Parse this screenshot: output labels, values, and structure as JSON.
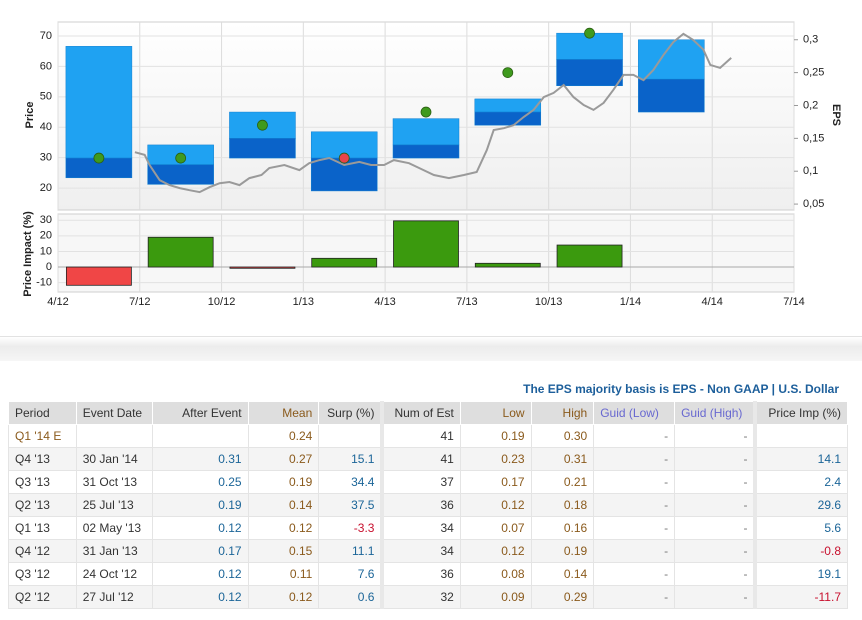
{
  "chart_data": [
    {
      "type": "eps-range",
      "y_label": "Price",
      "y2_label": "EPS",
      "xlim": [
        2012.25,
        2014.5
      ],
      "xticks": [
        {
          "value": 2012.25,
          "label": "4/12"
        },
        {
          "value": 2012.5,
          "label": "7/12"
        },
        {
          "value": 2012.75,
          "label": "10/12"
        },
        {
          "value": 2013,
          "label": "1/13"
        },
        {
          "value": 2013.25,
          "label": "4/13"
        },
        {
          "value": 2013.5,
          "label": "7/13"
        },
        {
          "value": 2013.75,
          "label": "10/13"
        },
        {
          "value": 2014,
          "label": "1/14"
        },
        {
          "value": 2014.25,
          "label": "4/14"
        },
        {
          "value": 2014.5,
          "label": "7/14"
        }
      ],
      "ylim": [
        12.8,
        74.6
      ],
      "yticks": [
        20,
        30,
        40,
        50,
        60,
        70
      ],
      "y2lim": [
        0.041,
        0.327
      ],
      "y2ticks": [
        {
          "value": 0.05,
          "label": "0,05"
        },
        {
          "value": 0.1,
          "label": "0,1"
        },
        {
          "value": 0.15,
          "label": "0,15"
        },
        {
          "value": 0.2,
          "label": "0,2"
        },
        {
          "value": 0.25,
          "label": "0,25"
        },
        {
          "value": 0.3,
          "label": "0,3"
        }
      ],
      "grid": true,
      "x": [
        2012.375,
        2012.625,
        2012.875,
        2013.125,
        2013.375,
        2013.625,
        2013.875,
        2014.125
      ],
      "eps": {
        "axis": "y2",
        "low": [
          0.09,
          0.08,
          0.12,
          0.07,
          0.12,
          0.17,
          0.23,
          0.19
        ],
        "mean": [
          0.12,
          0.11,
          0.15,
          0.12,
          0.14,
          0.19,
          0.27,
          0.24
        ],
        "high": [
          0.29,
          0.14,
          0.19,
          0.16,
          0.18,
          0.21,
          0.31,
          0.3
        ],
        "actual": [
          0.12,
          0.12,
          0.17,
          0.12,
          0.19,
          0.25,
          0.31,
          null
        ],
        "color_low": "#0a63c9",
        "color_high": "#1fa2f2",
        "point_colors": [
          "#3f9a1e",
          "#3f9a1e",
          "#3f9a1e",
          "#e8434a",
          "#3f9a1e",
          "#3f9a1e",
          "#3f9a1e",
          null
        ]
      },
      "price": {
        "color": "#9a9a9a",
        "x": [
          2012.485,
          2012.515,
          2012.53,
          2012.561,
          2012.591,
          2012.622,
          2012.652,
          2012.683,
          2012.713,
          2012.744,
          2012.774,
          2012.805,
          2012.835,
          2012.872,
          2012.896,
          2012.942,
          2012.988,
          2013.018,
          2013.049,
          2013.079,
          2013.125,
          2013.171,
          2013.207,
          2013.247,
          2013.277,
          2013.323,
          2013.354,
          2013.399,
          2013.445,
          2013.491,
          2013.53,
          2013.561,
          2013.582,
          2013.613,
          2013.643,
          2013.674,
          2013.704,
          2013.735,
          2013.765,
          2013.796,
          2013.826,
          2013.857,
          2013.887,
          2013.918,
          2013.948,
          2013.979,
          2014.009,
          2014.04,
          2014.07,
          2014.101,
          2014.131,
          2014.162,
          2014.192,
          2014.223,
          2014.244,
          2014.274,
          2014.308
        ],
        "values": [
          31.8,
          30.9,
          27.6,
          22.6,
          21,
          20,
          19.3,
          18.7,
          20.3,
          21.6,
          22,
          21,
          23.3,
          24.3,
          26.6,
          27.6,
          25.9,
          28.2,
          29.2,
          29.9,
          27.6,
          28.6,
          27.6,
          27.6,
          29.2,
          28.2,
          26.6,
          24.3,
          23.3,
          24.3,
          25.3,
          32.5,
          39.1,
          39.7,
          40.7,
          43.4,
          45.7,
          49.9,
          51.3,
          53.9,
          49.9,
          47.3,
          45.7,
          48,
          52.3,
          57.2,
          57.2,
          55.5,
          58.8,
          63.8,
          68,
          70.7,
          68.7,
          65.5,
          60.5,
          59.5,
          62.8
        ]
      }
    },
    {
      "type": "bar",
      "y_label": "Price Impact (%)",
      "ylim": [
        -16,
        34
      ],
      "yticks": [
        -10,
        0,
        10,
        20,
        30
      ],
      "values": [
        -11.7,
        19.1,
        -0.8,
        5.6,
        29.6,
        2.4,
        14.1
      ],
      "colors": [
        "#f04646",
        "#3b9a0e",
        "#f04646",
        "#3b9a0e",
        "#3b9a0e",
        "#3b9a0e",
        "#3b9a0e"
      ]
    }
  ],
  "table": {
    "caption": "The EPS majority basis is EPS - Non GAAP | U.S. Dollar",
    "header": [
      "Period",
      "Event Date",
      "After Event",
      "Mean",
      "Surp (%)",
      "Num of Est",
      "Low",
      "High",
      "Guid (Low)",
      "Guid (High)",
      "Price Imp (%)"
    ],
    "rows": [
      [
        "Q1 '14 E",
        null,
        null,
        "0.24",
        null,
        "41",
        "0.19",
        "0.30",
        "-",
        "-",
        null
      ],
      [
        "Q4 '13",
        "30 Jan '14",
        "0.31",
        "0.27",
        "15.1",
        "41",
        "0.23",
        "0.31",
        "-",
        "-",
        "14.1"
      ],
      [
        "Q3 '13",
        "31 Oct '13",
        "0.25",
        "0.19",
        "34.4",
        "37",
        "0.17",
        "0.21",
        "-",
        "-",
        "2.4"
      ],
      [
        "Q2 '13",
        "25 Jul '13",
        "0.19",
        "0.14",
        "37.5",
        "36",
        "0.12",
        "0.18",
        "-",
        "-",
        "29.6"
      ],
      [
        "Q1 '13",
        "02 May '13",
        "0.12",
        "0.12",
        "-3.3",
        "34",
        "0.07",
        "0.16",
        "-",
        "-",
        "5.6"
      ],
      [
        "Q4 '12",
        "31 Jan '13",
        "0.17",
        "0.15",
        "11.1",
        "34",
        "0.12",
        "0.19",
        "-",
        "-",
        "-0.8"
      ],
      [
        "Q3 '12",
        "24 Oct '12",
        "0.12",
        "0.11",
        "7.6",
        "36",
        "0.08",
        "0.14",
        "-",
        "-",
        "19.1"
      ],
      [
        "Q2 '12",
        "27 Jul '12",
        "0.12",
        "0.12",
        "0.6",
        "32",
        "0.09",
        "0.29",
        "-",
        "-",
        "-11.7"
      ]
    ]
  }
}
